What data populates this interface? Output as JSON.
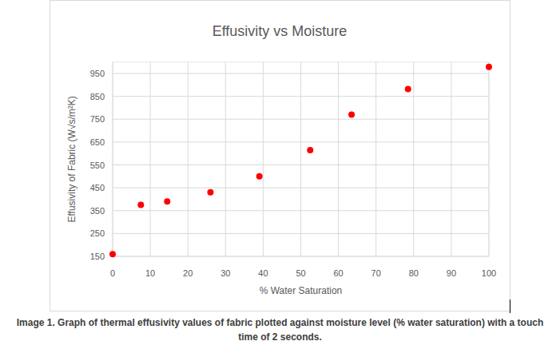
{
  "chart_data": {
    "type": "scatter",
    "title": "Effusivity vs Moisture",
    "x_label": "% Water Saturation",
    "y_label": "Effusivity of Fabric (W√s/m²K)",
    "caption": "Image 1. Graph of thermal effusivity values of fabric plotted against moisture level (% water saturation) with a touch time of 2 seconds.",
    "x": [
      0,
      7.5,
      14.5,
      26,
      39,
      52.5,
      63.5,
      78.5,
      100
    ],
    "values": [
      160,
      375,
      390,
      430,
      500,
      615,
      770,
      882,
      979
    ],
    "color": "#ff0000",
    "marker": "circle",
    "xlim": [
      0,
      100
    ],
    "xticks": [
      0,
      10,
      20,
      30,
      40,
      50,
      60,
      70,
      80,
      90,
      100
    ],
    "ylim": [
      150,
      1000
    ],
    "yticks": [
      150,
      250,
      350,
      450,
      550,
      650,
      750,
      850,
      950
    ],
    "grid": true
  }
}
